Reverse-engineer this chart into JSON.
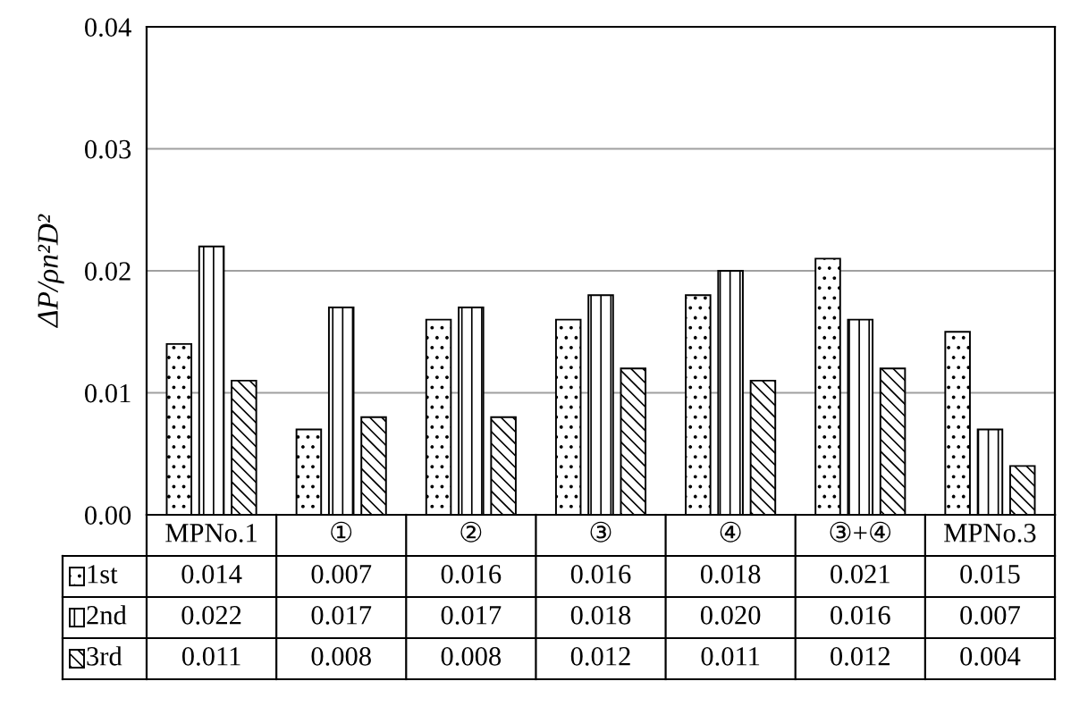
{
  "chart_data": {
    "type": "bar",
    "ylabel": "ΔP/ρn²D²",
    "categories": [
      "MPNo.1",
      "①",
      "②",
      "③",
      "④",
      "③+④",
      "MPNo.3"
    ],
    "series": [
      {
        "name": "1st",
        "color": "#000000",
        "values": [
          0.014,
          0.007,
          0.016,
          0.016,
          0.018,
          0.021,
          0.015
        ],
        "value_labels": [
          "0.014",
          "0.007",
          "0.016",
          "0.016",
          "0.018",
          "0.021",
          "0.015"
        ]
      },
      {
        "name": "2nd",
        "color": "#000000",
        "values": [
          0.022,
          0.017,
          0.017,
          0.018,
          0.02,
          0.016,
          0.007
        ],
        "value_labels": [
          "0.022",
          "0.017",
          "0.017",
          "0.018",
          "0.020",
          "0.016",
          "0.007"
        ]
      },
      {
        "name": "3rd",
        "color": "#000000",
        "values": [
          0.011,
          0.008,
          0.008,
          0.012,
          0.011,
          0.012,
          0.004
        ],
        "value_labels": [
          "0.011",
          "0.008",
          "0.008",
          "0.012",
          "0.011",
          "0.012",
          "0.004"
        ]
      }
    ],
    "ylim": [
      0,
      0.04
    ],
    "yticks": [
      {
        "value": 0,
        "label": "0.00"
      },
      {
        "value": 0.01,
        "label": "0.01"
      },
      {
        "value": 0.02,
        "label": "0.02"
      },
      {
        "value": 0.03,
        "label": "0.03"
      },
      {
        "value": 0.04,
        "label": "0.04"
      }
    ],
    "grid": "y",
    "legend": "bottom left",
    "tick_labels": "y"
  }
}
